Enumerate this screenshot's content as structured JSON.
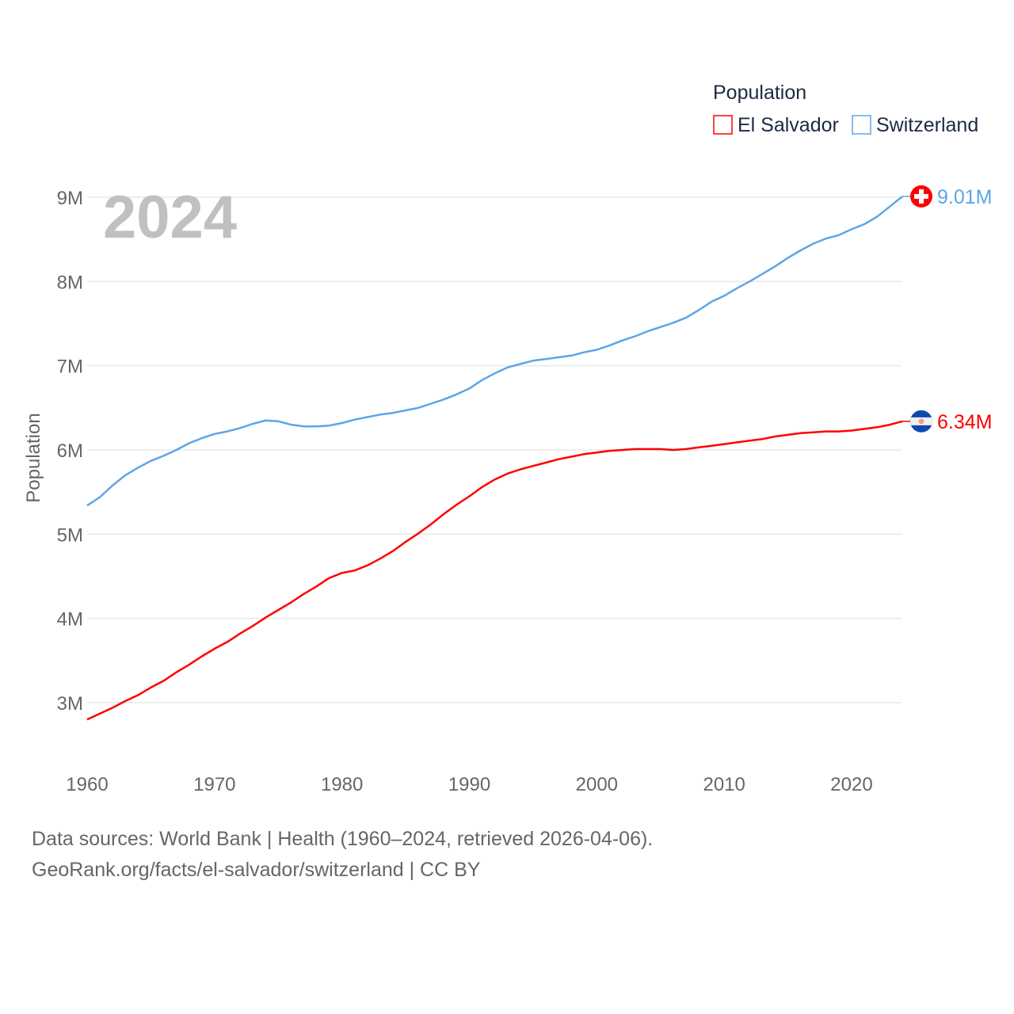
{
  "chart_data": {
    "type": "line",
    "title": "Population",
    "ylabel": "Population",
    "xlabel": "",
    "year_label": "2024",
    "xlim": [
      1960,
      2024
    ],
    "ylim": [
      2.5,
      9.2
    ],
    "x_ticks": [
      "1960",
      "1970",
      "1980",
      "1990",
      "2000",
      "2010",
      "2020"
    ],
    "x_tick_values": [
      1960,
      1970,
      1980,
      1990,
      2000,
      2010,
      2020
    ],
    "y_ticks": [
      "3M",
      "4M",
      "5M",
      "6M",
      "7M",
      "8M",
      "9M"
    ],
    "y_tick_values": [
      3,
      4,
      5,
      6,
      7,
      8,
      9
    ],
    "grid": true,
    "legend_position": "top-right",
    "x": [
      1960,
      1961,
      1962,
      1963,
      1964,
      1965,
      1966,
      1967,
      1968,
      1969,
      1970,
      1971,
      1972,
      1973,
      1974,
      1975,
      1976,
      1977,
      1978,
      1979,
      1980,
      1981,
      1982,
      1983,
      1984,
      1985,
      1986,
      1987,
      1988,
      1989,
      1990,
      1991,
      1992,
      1993,
      1994,
      1995,
      1996,
      1997,
      1998,
      1999,
      2000,
      2001,
      2002,
      2003,
      2004,
      2005,
      2006,
      2007,
      2008,
      2009,
      2010,
      2011,
      2012,
      2013,
      2014,
      2015,
      2016,
      2017,
      2018,
      2019,
      2020,
      2021,
      2022,
      2023,
      2024
    ],
    "series": [
      {
        "name": "El Salvador",
        "color": "#ff0000",
        "end_label": "6.34M",
        "flag": "el-salvador-flag",
        "values": [
          2.8,
          2.87,
          2.94,
          3.02,
          3.09,
          3.18,
          3.26,
          3.36,
          3.45,
          3.55,
          3.64,
          3.72,
          3.82,
          3.91,
          4.01,
          4.1,
          4.19,
          4.29,
          4.38,
          4.48,
          4.54,
          4.57,
          4.63,
          4.71,
          4.8,
          4.91,
          5.01,
          5.12,
          5.24,
          5.35,
          5.45,
          5.56,
          5.65,
          5.72,
          5.77,
          5.81,
          5.85,
          5.89,
          5.92,
          5.95,
          5.97,
          5.99,
          6.0,
          6.01,
          6.01,
          6.01,
          6.0,
          6.01,
          6.03,
          6.05,
          6.07,
          6.09,
          6.11,
          6.13,
          6.16,
          6.18,
          6.2,
          6.21,
          6.22,
          6.22,
          6.23,
          6.25,
          6.27,
          6.3,
          6.34
        ]
      },
      {
        "name": "Switzerland",
        "color": "#5da5e8",
        "end_label": "9.01M",
        "flag": "switzerland-flag",
        "values": [
          5.34,
          5.44,
          5.58,
          5.7,
          5.79,
          5.87,
          5.93,
          6.0,
          6.08,
          6.14,
          6.19,
          6.22,
          6.26,
          6.31,
          6.35,
          6.34,
          6.3,
          6.28,
          6.28,
          6.29,
          6.32,
          6.36,
          6.39,
          6.42,
          6.44,
          6.47,
          6.5,
          6.55,
          6.6,
          6.66,
          6.73,
          6.83,
          6.91,
          6.98,
          7.02,
          7.06,
          7.08,
          7.1,
          7.12,
          7.16,
          7.19,
          7.24,
          7.3,
          7.35,
          7.41,
          7.46,
          7.51,
          7.57,
          7.66,
          7.76,
          7.83,
          7.92,
          8.0,
          8.09,
          8.18,
          8.28,
          8.37,
          8.45,
          8.51,
          8.55,
          8.62,
          8.68,
          8.77,
          8.89,
          9.01
        ]
      }
    ]
  },
  "footer": {
    "line1": "Data sources: World Bank | Health (1960–2024, retrieved 2026-04-06).",
    "line2": "GeoRank.org/facts/el-salvador/switzerland | CC BY"
  }
}
